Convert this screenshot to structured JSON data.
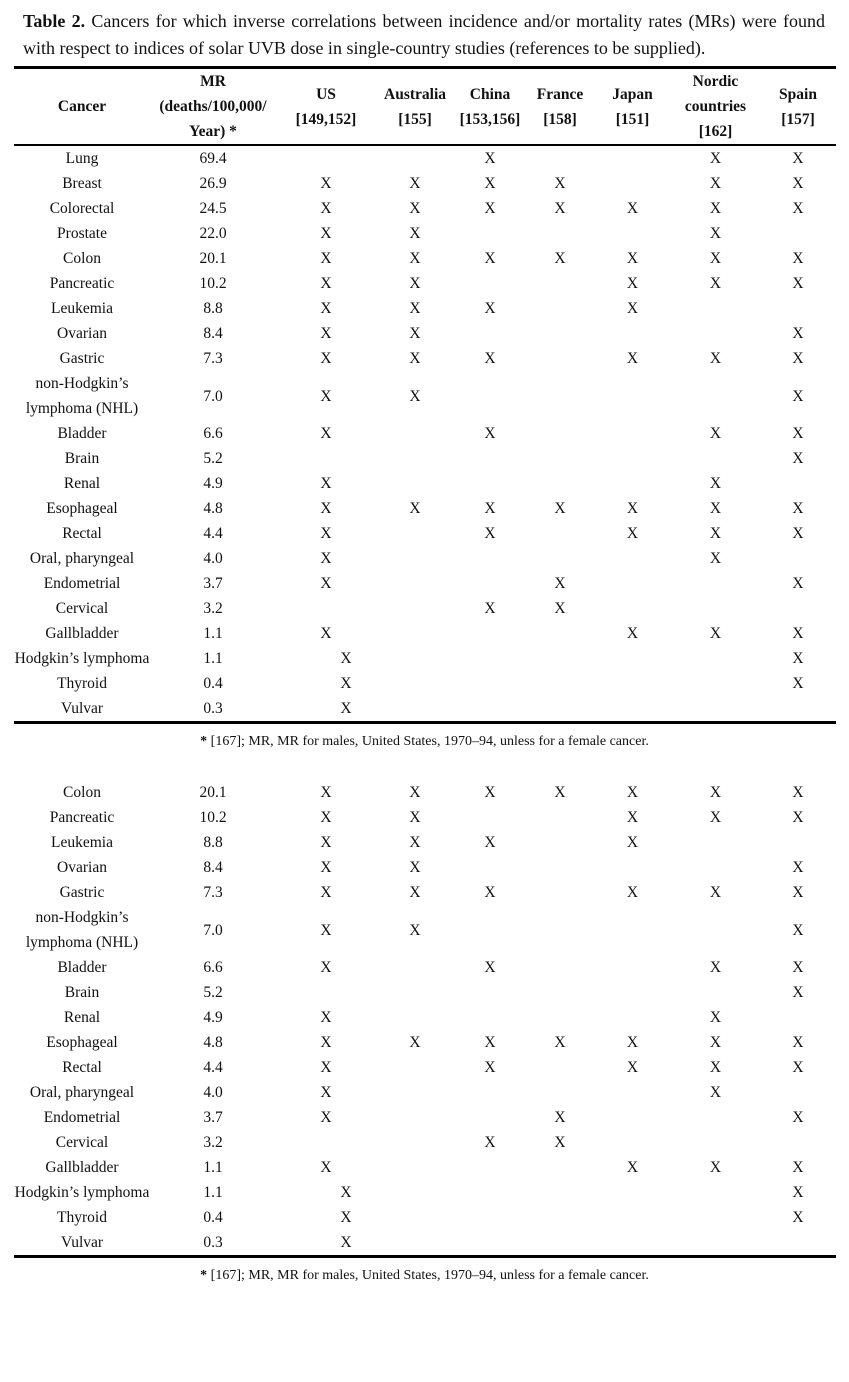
{
  "caption": {
    "label": "Table 2.",
    "text": "Cancers for which inverse correlations between incidence and/or mortality rates (MRs) were found with respect to indices of solar UVB dose in single-country studies (references to be supplied)."
  },
  "columns": [
    {
      "key": "cancer",
      "label": "Cancer"
    },
    {
      "key": "mr",
      "label": "MR\n(deaths/100,000/\nYear) *"
    },
    {
      "key": "us",
      "label": "US\n[149,152]"
    },
    {
      "key": "australia",
      "label": "Australia\n[155]"
    },
    {
      "key": "china",
      "label": "China\n[153,156]"
    },
    {
      "key": "france",
      "label": "France\n[158]"
    },
    {
      "key": "japan",
      "label": "Japan\n[151]"
    },
    {
      "key": "nordic",
      "label": "Nordic\ncountries\n[162]"
    },
    {
      "key": "spain",
      "label": "Spain\n[157]"
    }
  ],
  "mark_glyph": "X",
  "page1_rows": [
    {
      "cancer": "Lung",
      "mr": "69.4",
      "marks": [
        "",
        "",
        "X",
        "",
        "",
        "X",
        "X"
      ],
      "shift_us": false
    },
    {
      "cancer": "Breast",
      "mr": "26.9",
      "marks": [
        "X",
        "X",
        "X",
        "X",
        "",
        "X",
        "X"
      ],
      "shift_us": false
    },
    {
      "cancer": "Colorectal",
      "mr": "24.5",
      "marks": [
        "X",
        "X",
        "X",
        "X",
        "X",
        "X",
        "X"
      ],
      "shift_us": false
    },
    {
      "cancer": "Prostate",
      "mr": "22.0",
      "marks": [
        "X",
        "X",
        "",
        "",
        "",
        "X",
        ""
      ],
      "shift_us": false
    },
    {
      "cancer": "Colon",
      "mr": "20.1",
      "marks": [
        "X",
        "X",
        "X",
        "X",
        "X",
        "X",
        "X"
      ],
      "shift_us": false
    },
    {
      "cancer": "Pancreatic",
      "mr": "10.2",
      "marks": [
        "X",
        "X",
        "",
        "",
        "X",
        "X",
        "X"
      ],
      "shift_us": false
    },
    {
      "cancer": "Leukemia",
      "mr": "8.8",
      "marks": [
        "X",
        "X",
        "X",
        "",
        "X",
        "",
        ""
      ],
      "shift_us": false
    },
    {
      "cancer": "Ovarian",
      "mr": "8.4",
      "marks": [
        "X",
        "X",
        "",
        "",
        "",
        "",
        "X"
      ],
      "shift_us": false
    },
    {
      "cancer": "Gastric",
      "mr": "7.3",
      "marks": [
        "X",
        "X",
        "X",
        "",
        "X",
        "X",
        "X"
      ],
      "shift_us": false
    },
    {
      "cancer": "non-Hodgkin’s lymphoma (NHL)",
      "mr": "7.0",
      "marks": [
        "X",
        "X",
        "",
        "",
        "",
        "",
        "X"
      ],
      "shift_us": false
    },
    {
      "cancer": "Bladder",
      "mr": "6.6",
      "marks": [
        "X",
        "",
        "X",
        "",
        "",
        "X",
        "X"
      ],
      "shift_us": false
    },
    {
      "cancer": "Brain",
      "mr": "5.2",
      "marks": [
        "",
        "",
        "",
        "",
        "",
        "",
        "X"
      ],
      "shift_us": false
    },
    {
      "cancer": "Renal",
      "mr": "4.9",
      "marks": [
        "X",
        "",
        "",
        "",
        "",
        "X",
        ""
      ],
      "shift_us": false
    },
    {
      "cancer": "Esophageal",
      "mr": "4.8",
      "marks": [
        "X",
        "X",
        "X",
        "X",
        "X",
        "X",
        "X"
      ],
      "shift_us": false
    },
    {
      "cancer": "Rectal",
      "mr": "4.4",
      "marks": [
        "X",
        "",
        "X",
        "",
        "X",
        "X",
        "X"
      ],
      "shift_us": false
    },
    {
      "cancer": "Oral, pharyngeal",
      "mr": "4.0",
      "marks": [
        "X",
        "",
        "",
        "",
        "",
        "X",
        ""
      ],
      "shift_us": false
    },
    {
      "cancer": "Endometrial",
      "mr": "3.7",
      "marks": [
        "X",
        "",
        "",
        "X",
        "",
        "",
        "X"
      ],
      "shift_us": false
    },
    {
      "cancer": "Cervical",
      "mr": "3.2",
      "marks": [
        "",
        "",
        "X",
        "X",
        "",
        "",
        ""
      ],
      "shift_us": false
    },
    {
      "cancer": "Gallbladder",
      "mr": "1.1",
      "marks": [
        "X",
        "",
        "",
        "",
        "X",
        "X",
        "X"
      ],
      "shift_us": false
    },
    {
      "cancer": "Hodgkin’s lymphoma",
      "mr": "1.1",
      "marks": [
        "X",
        "",
        "",
        "",
        "",
        "",
        "X"
      ],
      "shift_us": true
    },
    {
      "cancer": "Thyroid",
      "mr": "0.4",
      "marks": [
        "X",
        "",
        "",
        "",
        "",
        "",
        "X"
      ],
      "shift_us": true
    },
    {
      "cancer": "Vulvar",
      "mr": "0.3",
      "marks": [
        "X",
        "",
        "",
        "",
        "",
        "",
        ""
      ],
      "shift_us": true
    }
  ],
  "page2_rows": [
    {
      "cancer": "Colon",
      "mr": "20.1",
      "marks": [
        "X",
        "X",
        "X",
        "X",
        "X",
        "X",
        "X"
      ],
      "shift_us": false
    },
    {
      "cancer": "Pancreatic",
      "mr": "10.2",
      "marks": [
        "X",
        "X",
        "",
        "",
        "X",
        "X",
        "X"
      ],
      "shift_us": false
    },
    {
      "cancer": "Leukemia",
      "mr": "8.8",
      "marks": [
        "X",
        "X",
        "X",
        "",
        "X",
        "",
        ""
      ],
      "shift_us": false
    },
    {
      "cancer": "Ovarian",
      "mr": "8.4",
      "marks": [
        "X",
        "X",
        "",
        "",
        "",
        "",
        "X"
      ],
      "shift_us": false
    },
    {
      "cancer": "Gastric",
      "mr": "7.3",
      "marks": [
        "X",
        "X",
        "X",
        "",
        "X",
        "X",
        "X"
      ],
      "shift_us": false
    },
    {
      "cancer": "non-Hodgkin’s lymphoma (NHL)",
      "mr": "7.0",
      "marks": [
        "X",
        "X",
        "",
        "",
        "",
        "",
        "X"
      ],
      "shift_us": false
    },
    {
      "cancer": "Bladder",
      "mr": "6.6",
      "marks": [
        "X",
        "",
        "X",
        "",
        "",
        "X",
        "X"
      ],
      "shift_us": false
    },
    {
      "cancer": "Brain",
      "mr": "5.2",
      "marks": [
        "",
        "",
        "",
        "",
        "",
        "",
        "X"
      ],
      "shift_us": false
    },
    {
      "cancer": "Renal",
      "mr": "4.9",
      "marks": [
        "X",
        "",
        "",
        "",
        "",
        "X",
        ""
      ],
      "shift_us": false
    },
    {
      "cancer": "Esophageal",
      "mr": "4.8",
      "marks": [
        "X",
        "X",
        "X",
        "X",
        "X",
        "X",
        "X"
      ],
      "shift_us": false
    },
    {
      "cancer": "Rectal",
      "mr": "4.4",
      "marks": [
        "X",
        "",
        "X",
        "",
        "X",
        "X",
        "X"
      ],
      "shift_us": false
    },
    {
      "cancer": "Oral, pharyngeal",
      "mr": "4.0",
      "marks": [
        "X",
        "",
        "",
        "",
        "",
        "X",
        ""
      ],
      "shift_us": false
    },
    {
      "cancer": "Endometrial",
      "mr": "3.7",
      "marks": [
        "X",
        "",
        "",
        "X",
        "",
        "",
        "X"
      ],
      "shift_us": false
    },
    {
      "cancer": "Cervical",
      "mr": "3.2",
      "marks": [
        "",
        "",
        "X",
        "X",
        "",
        "",
        ""
      ],
      "shift_us": false
    },
    {
      "cancer": "Gallbladder",
      "mr": "1.1",
      "marks": [
        "X",
        "",
        "",
        "",
        "X",
        "X",
        "X"
      ],
      "shift_us": false
    },
    {
      "cancer": "Hodgkin’s lymphoma",
      "mr": "1.1",
      "marks": [
        "X",
        "",
        "",
        "",
        "",
        "",
        "X"
      ],
      "shift_us": true
    },
    {
      "cancer": "Thyroid",
      "mr": "0.4",
      "marks": [
        "X",
        "",
        "",
        "",
        "",
        "",
        "X"
      ],
      "shift_us": true
    },
    {
      "cancer": "Vulvar",
      "mr": "0.3",
      "marks": [
        "X",
        "",
        "",
        "",
        "",
        "",
        ""
      ],
      "shift_us": true
    }
  ],
  "footnote": {
    "marker": "*",
    "text": " [167]; MR, MR for males, United States, 1970–94, unless for a female cancer."
  }
}
